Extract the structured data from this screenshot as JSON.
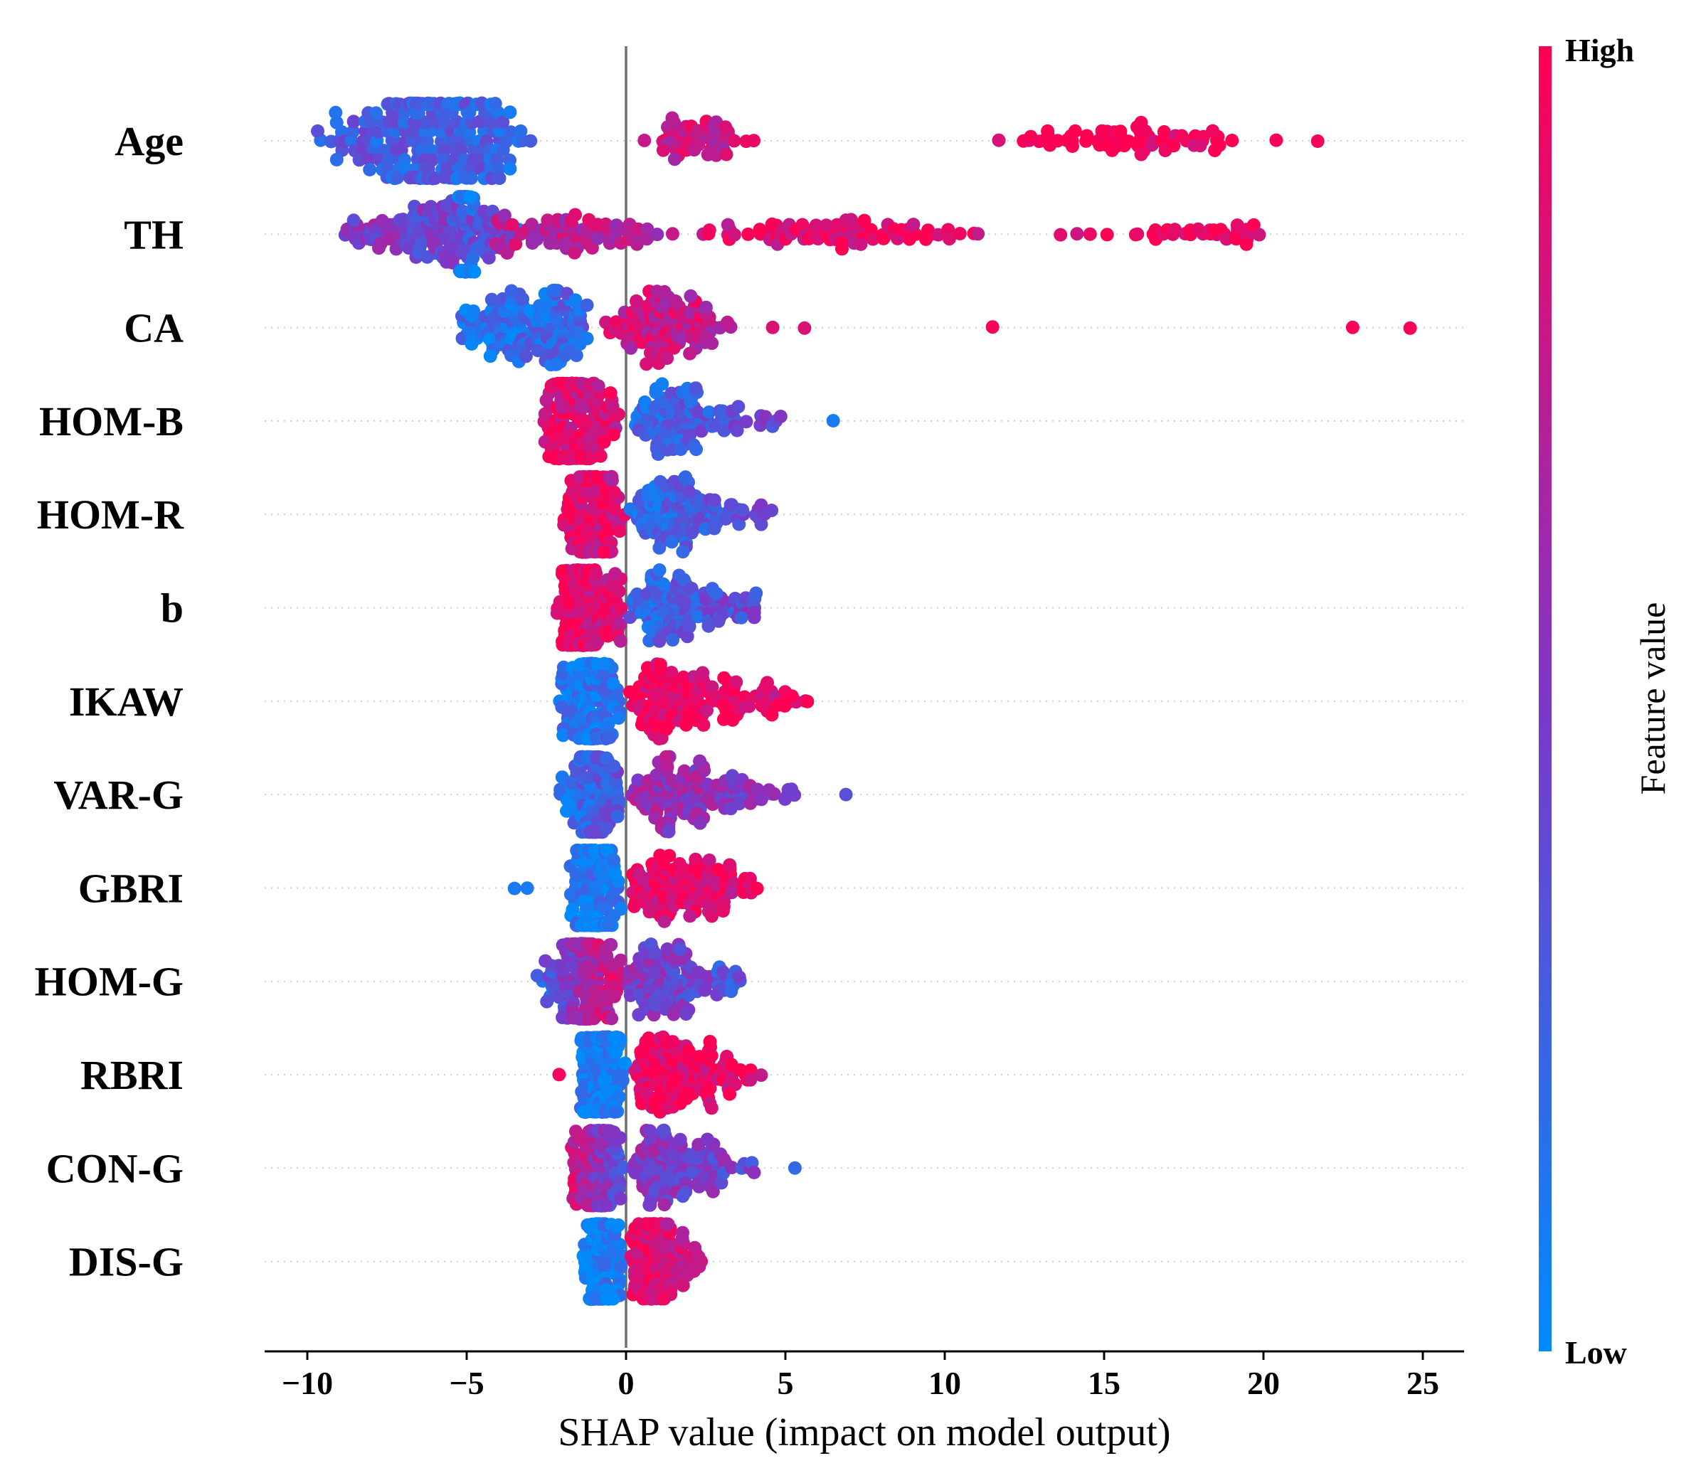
{
  "chart_data": {
    "type": "scatter",
    "subtype": "shap-beeswarm",
    "title": "",
    "xlabel": "SHAP value (impact on model output)",
    "ylabel": "",
    "xlim": [
      -11.2,
      26.5
    ],
    "xticks": [
      -10,
      -5,
      0,
      5,
      10,
      15,
      20,
      25
    ],
    "xtick_labels": [
      "−10",
      "−5",
      "0",
      "5",
      "10",
      "15",
      "20",
      "25"
    ],
    "zero_line": 0,
    "grid": "dotted row guides",
    "colorbar": {
      "title": "Feature value",
      "high_label": "High",
      "low_label": "Low",
      "high_color": "#ff0052",
      "low_color": "#008bfb",
      "position": "right"
    },
    "features": [
      {
        "name": "Age",
        "clusters": [
          {
            "lo": -9.9,
            "hi": -2.8,
            "peak": -5.1,
            "n": 220,
            "c0": 0.3,
            "c1": 0.22,
            "spread": 2.0
          },
          {
            "lo": 0.4,
            "hi": 4.2,
            "peak": 2.0,
            "n": 60,
            "c0": 0.78,
            "c1": 0.78
          },
          {
            "lo": 11.1,
            "hi": 19.4,
            "peak": 15.8,
            "n": 70,
            "c0": 0.97,
            "c1": 0.97
          }
        ],
        "outliers": [
          {
            "x": 20.4,
            "c": 0.97
          },
          {
            "x": 21.7,
            "c": 0.97
          }
        ]
      },
      {
        "name": "TH",
        "clusters": [
          {
            "lo": -9.2,
            "hi": -3.2,
            "peak": -5.4,
            "n": 160,
            "c0": 0.55,
            "c1": 0.3
          },
          {
            "lo": -5.3,
            "hi": -4.7,
            "peak": -5.0,
            "n": 45,
            "c0": 0.08,
            "c1": 0.08,
            "spread": 1.3
          },
          {
            "lo": -4.5,
            "hi": 2.0,
            "peak": -2.0,
            "n": 90,
            "c0": 0.72,
            "c1": 0.72
          },
          {
            "lo": 2.0,
            "hi": 12.0,
            "peak": 6.0,
            "n": 90,
            "c0": 0.9,
            "c1": 0.9
          },
          {
            "lo": 12.0,
            "hi": 20.0,
            "peak": 19.5,
            "n": 35,
            "c0": 0.98,
            "c1": 0.98
          }
        ],
        "outliers": []
      },
      {
        "name": "CA",
        "clusters": [
          {
            "lo": -5.5,
            "hi": -1.0,
            "peak": -2.2,
            "n": 150,
            "c0": 0.12,
            "c1": 0.25,
            "spread": 1.2
          },
          {
            "lo": -1.0,
            "hi": 3.7,
            "peak": 0.9,
            "n": 120,
            "c0": 0.78,
            "c1": 0.78,
            "spread": 1.1
          }
        ],
        "outliers": [
          {
            "x": 4.6,
            "c": 0.85
          },
          {
            "x": 5.6,
            "c": 0.85
          },
          {
            "x": 11.5,
            "c": 0.97
          },
          {
            "x": 22.8,
            "c": 0.97
          },
          {
            "x": 24.6,
            "c": 0.97
          }
        ]
      },
      {
        "name": "HOM-B",
        "clusters": [
          {
            "lo": -2.7,
            "hi": 0.0,
            "peak": -1.8,
            "n": 170,
            "c0": 0.92,
            "c1": 0.8,
            "spread": 1.5
          },
          {
            "lo": 0.0,
            "hi": 5.3,
            "peak": 1.0,
            "n": 120,
            "c0": 0.18,
            "c1": 0.45
          }
        ],
        "outliers": [
          {
            "x": 6.5,
            "c": 0.1
          }
        ]
      },
      {
        "name": "HOM-R",
        "clusters": [
          {
            "lo": -2.0,
            "hi": 0.0,
            "peak": -1.3,
            "n": 150,
            "c0": 0.92,
            "c1": 0.8,
            "spread": 1.2
          },
          {
            "lo": 0.0,
            "hi": 4.8,
            "peak": 1.2,
            "n": 130,
            "c0": 0.15,
            "c1": 0.4
          }
        ],
        "outliers": []
      },
      {
        "name": "b",
        "clusters": [
          {
            "lo": -2.2,
            "hi": 0.0,
            "peak": -1.4,
            "n": 150,
            "c0": 0.95,
            "c1": 0.82,
            "spread": 1.2
          },
          {
            "lo": 0.0,
            "hi": 4.8,
            "peak": 0.8,
            "n": 130,
            "c0": 0.2,
            "c1": 0.45
          }
        ],
        "outliers": []
      },
      {
        "name": "IKAW",
        "clusters": [
          {
            "lo": -2.2,
            "hi": 0.0,
            "peak": -1.1,
            "n": 130,
            "c0": 0.1,
            "c1": 0.2,
            "spread": 1.2
          },
          {
            "lo": 0.0,
            "hi": 5.8,
            "peak": 0.8,
            "n": 160,
            "c0": 0.95,
            "c1": 0.9
          }
        ],
        "outliers": []
      },
      {
        "name": "VAR-G",
        "clusters": [
          {
            "lo": -2.1,
            "hi": 0.0,
            "peak": -1.0,
            "n": 130,
            "c0": 0.15,
            "c1": 0.35,
            "spread": 1.2
          },
          {
            "lo": 0.0,
            "hi": 5.5,
            "peak": 0.9,
            "n": 140,
            "c0": 0.65,
            "c1": 0.45
          }
        ],
        "outliers": [
          {
            "x": 6.9,
            "c": 0.35
          }
        ]
      },
      {
        "name": "GBRI",
        "clusters": [
          {
            "lo": -1.8,
            "hi": 0.0,
            "peak": -1.2,
            "n": 160,
            "c0": 0.08,
            "c1": 0.12,
            "spread": 1.5
          },
          {
            "lo": 0.0,
            "hi": 4.8,
            "peak": 0.9,
            "n": 140,
            "c0": 0.92,
            "c1": 0.88
          }
        ],
        "outliers": [
          {
            "x": -3.5,
            "c": 0.1
          },
          {
            "x": -3.1,
            "c": 0.1
          }
        ]
      },
      {
        "name": "HOM-G",
        "clusters": [
          {
            "lo": -2.9,
            "hi": 0.0,
            "peak": -1.0,
            "n": 150,
            "c0": 0.2,
            "c1": 0.92,
            "spread": 1.1
          },
          {
            "lo": 0.0,
            "hi": 3.8,
            "peak": 0.7,
            "n": 130,
            "c0": 0.55,
            "c1": 0.3
          }
        ],
        "outliers": []
      },
      {
        "name": "RBRI",
        "clusters": [
          {
            "lo": -1.5,
            "hi": 0.2,
            "peak": -1.0,
            "n": 120,
            "c0": 0.08,
            "c1": 0.08,
            "spread": 1.2
          },
          {
            "lo": 0.2,
            "hi": 4.3,
            "peak": 0.8,
            "n": 150,
            "c0": 0.95,
            "c1": 0.88
          }
        ],
        "outliers": [
          {
            "x": -2.1,
            "c": 0.95
          }
        ]
      },
      {
        "name": "CON-G",
        "clusters": [
          {
            "lo": -1.8,
            "hi": 0.0,
            "peak": -0.7,
            "n": 130,
            "c0": 0.85,
            "c1": 0.3,
            "spread": 1.1
          },
          {
            "lo": 0.0,
            "hi": 4.1,
            "peak": 0.9,
            "n": 130,
            "c0": 0.55,
            "c1": 0.4
          }
        ],
        "outliers": [
          {
            "x": 5.3,
            "c": 0.2
          }
        ]
      },
      {
        "name": "DIS-G",
        "clusters": [
          {
            "lo": -1.4,
            "hi": 0.0,
            "peak": -0.9,
            "n": 110,
            "c0": 0.05,
            "c1": 0.1,
            "spread": 1.2
          },
          {
            "lo": 0.0,
            "hi": 2.8,
            "peak": 0.5,
            "n": 130,
            "c0": 0.92,
            "c1": 0.75
          }
        ],
        "outliers": []
      }
    ]
  }
}
